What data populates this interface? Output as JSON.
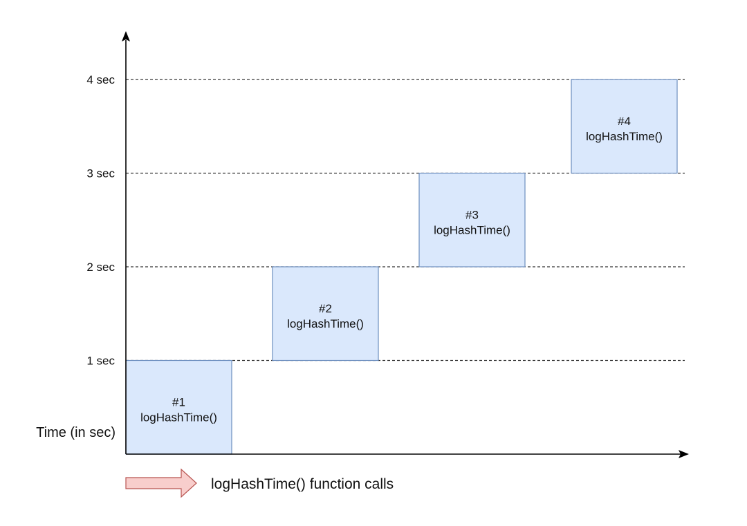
{
  "axes": {
    "y_title": "Time (in sec)",
    "y_ticks": [
      "1 sec",
      "2 sec",
      "3 sec",
      "4 sec"
    ]
  },
  "blocks": [
    {
      "number": "#1",
      "label": "logHashTime()",
      "start": 0,
      "end": 1
    },
    {
      "number": "#2",
      "label": "logHashTime()",
      "start": 1,
      "end": 2
    },
    {
      "number": "#3",
      "label": "logHashTime()",
      "start": 2,
      "end": 3
    },
    {
      "number": "#4",
      "label": "logHashTime()",
      "start": 3,
      "end": 4
    }
  ],
  "legend": {
    "label": "logHashTime() function calls"
  },
  "colors": {
    "block_fill": "#dae8fc",
    "block_stroke": "#6c8ebf",
    "arrow_fill": "#f8cecc",
    "arrow_stroke": "#b85450",
    "axis": "#000000",
    "gridline": "#333333"
  }
}
